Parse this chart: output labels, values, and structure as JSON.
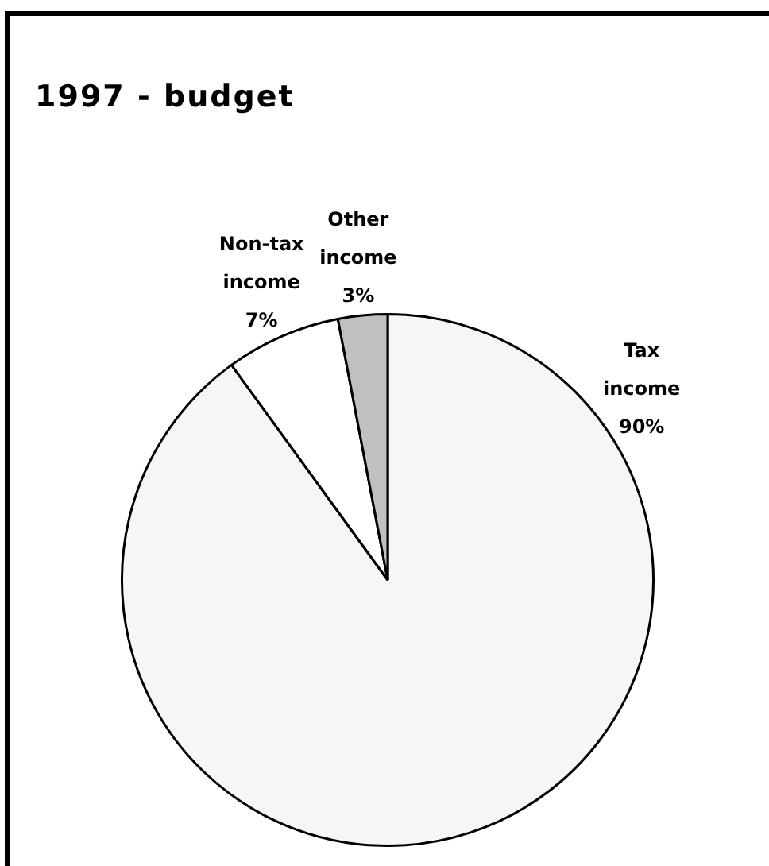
{
  "chart_data": {
    "type": "pie",
    "title": "1997 - budget",
    "categories": [
      "Tax income",
      "Non-tax income",
      "Other income"
    ],
    "values": [
      90,
      7,
      3
    ],
    "colors": [
      "#f6f6f6",
      "#ffffff",
      "#c0c0c0"
    ],
    "value_labels": [
      "90%",
      "7%",
      "3%"
    ],
    "legend": false
  }
}
